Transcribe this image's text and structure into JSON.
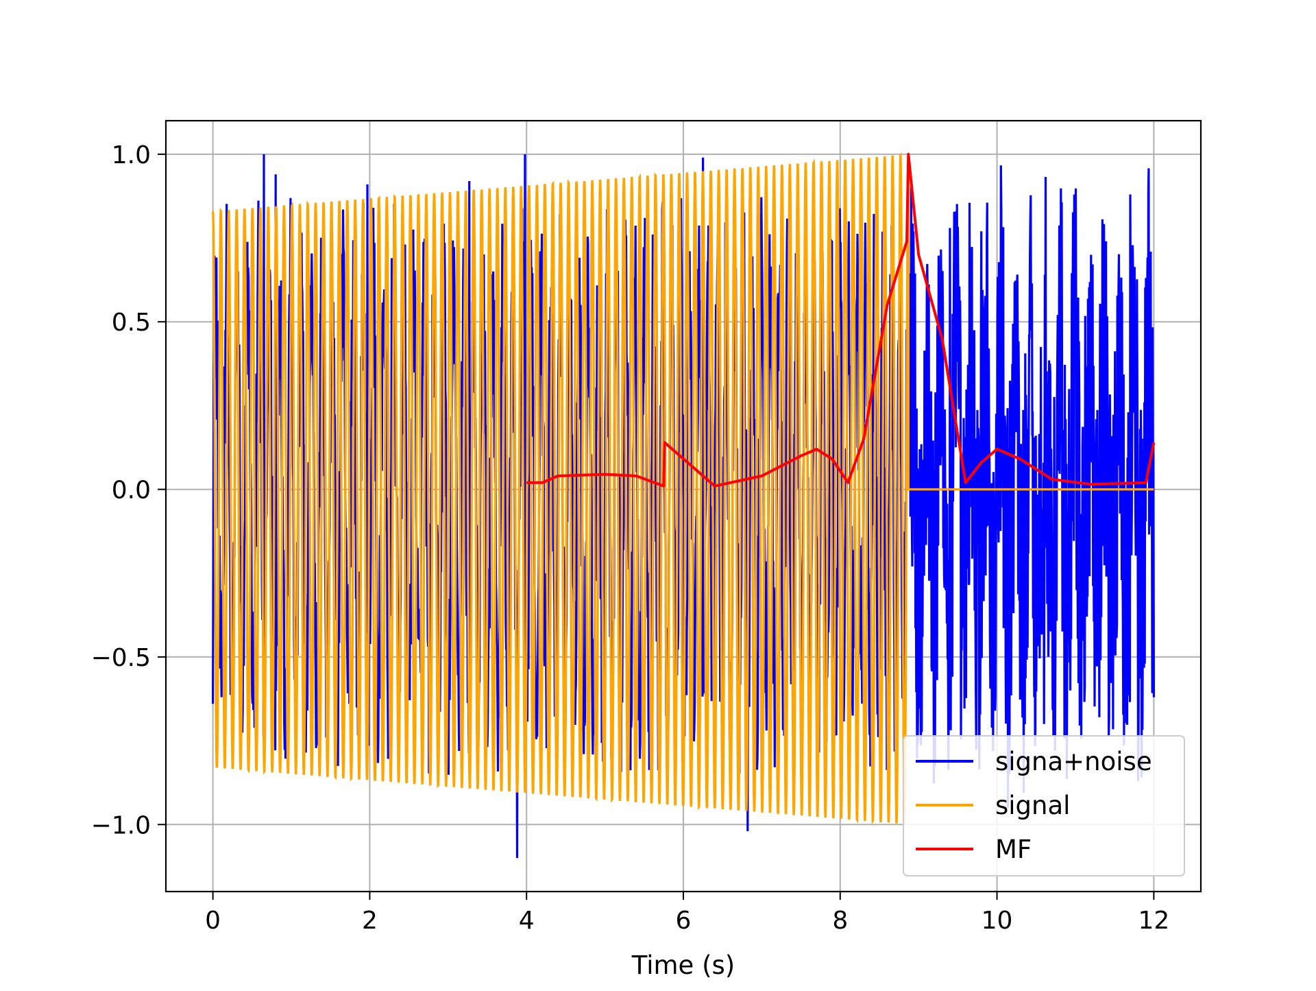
{
  "chart_data": {
    "type": "line",
    "title": "",
    "xlabel": "Time (s)",
    "ylabel": "",
    "xlim": [
      -0.6,
      12.6
    ],
    "ylim": [
      -1.2,
      1.1
    ],
    "x_ticks": [
      0,
      2,
      4,
      6,
      8,
      10,
      12
    ],
    "x_tick_labels": [
      "0",
      "2",
      "4",
      "6",
      "8",
      "10",
      "12"
    ],
    "y_ticks": [
      1.0,
      0.5,
      0.0,
      -0.5,
      -1.0
    ],
    "y_tick_labels": [
      "1.0",
      "0.5",
      "0.0",
      "−0.5",
      "−1.0"
    ],
    "grid": true,
    "legend": {
      "position": "lower-right",
      "entries": [
        {
          "label": "signa+noise",
          "color": "#0000ff"
        },
        {
          "label": "signal",
          "color": "#ffa500"
        },
        {
          "label": "MF",
          "color": "#ff0000"
        }
      ]
    },
    "series": [
      {
        "name": "signa+noise",
        "color": "#0000ff",
        "description_points": {
          "x": [
            0.0,
            0.65,
            0.8,
            1.97,
            2.28,
            3.27,
            3.88,
            3.98,
            6.25,
            6.82,
            8.87,
            9.4,
            9.8,
            10.6,
            11.2,
            11.7,
            11.8,
            12.0
          ],
          "y": [
            -0.64,
            1.0,
            0.94,
            0.91,
            0.69,
            0.92,
            -1.1,
            1.0,
            0.99,
            -1.02,
            0.73,
            0.78,
            0.77,
            -0.7,
            0.7,
            0.88,
            -0.87,
            -0.62
          ]
        }
      },
      {
        "name": "signal",
        "color": "#ffa500",
        "x_range": [
          0.0,
          8.87
        ],
        "amplitude_start": 0.83,
        "amplitude_end": 1.0,
        "cycles": 88,
        "zero_after_x": 8.87
      },
      {
        "name": "MF",
        "color": "#ff0000",
        "x": [
          4.0,
          4.2,
          4.4,
          5.0,
          5.4,
          5.75,
          5.76,
          6.4,
          7.0,
          7.5,
          7.7,
          7.9,
          8.1,
          8.3,
          8.6,
          8.85,
          8.87,
          9.0,
          9.3,
          9.6,
          9.8,
          10.0,
          10.3,
          10.7,
          11.2,
          11.9,
          12.0
        ],
        "y": [
          0.02,
          0.02,
          0.04,
          0.045,
          0.04,
          0.01,
          0.14,
          0.01,
          0.04,
          0.1,
          0.12,
          0.09,
          0.02,
          0.15,
          0.55,
          0.74,
          1.0,
          0.7,
          0.45,
          0.02,
          0.08,
          0.12,
          0.09,
          0.03,
          0.015,
          0.02,
          0.14
        ]
      }
    ]
  }
}
